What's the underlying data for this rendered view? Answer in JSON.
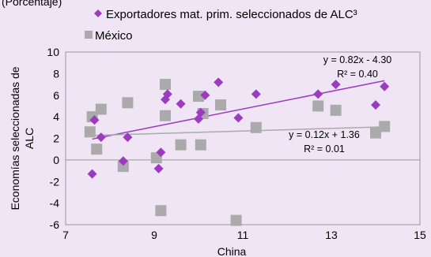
{
  "header": {
    "subtitle": "(Porcentaje)"
  },
  "chart_data": {
    "type": "scatter",
    "xlabel": "China",
    "ylabel": "Economías seleccionadas de ALC",
    "xlim": [
      7,
      15
    ],
    "ylim": [
      -6,
      10
    ],
    "x_ticks": [
      7,
      9,
      11,
      13,
      15
    ],
    "y_ticks": [
      -6,
      -4,
      -2,
      0,
      2,
      4,
      6,
      8,
      10
    ],
    "grid": false,
    "legend_position": "top-left",
    "series": [
      {
        "name": "Exportadores mat. prim. seleccionados de ALC³",
        "marker": "diamond",
        "color": "#9b3cc0",
        "points": [
          [
            7.6,
            -1.3
          ],
          [
            7.65,
            3.7
          ],
          [
            7.8,
            2.1
          ],
          [
            8.3,
            -0.1
          ],
          [
            8.4,
            2.1
          ],
          [
            9.1,
            -0.8
          ],
          [
            9.15,
            0.7
          ],
          [
            9.25,
            5.6
          ],
          [
            9.3,
            6.1
          ],
          [
            9.6,
            5.2
          ],
          [
            10.0,
            3.8
          ],
          [
            10.05,
            4.4
          ],
          [
            10.15,
            6.0
          ],
          [
            10.45,
            7.2
          ],
          [
            10.9,
            3.9
          ],
          [
            11.3,
            6.1
          ],
          [
            12.7,
            6.1
          ],
          [
            13.1,
            7.0
          ],
          [
            14.0,
            5.1
          ],
          [
            14.2,
            6.8
          ]
        ],
        "trendline": {
          "slope": 0.82,
          "intercept": -4.3,
          "x_range": [
            7.6,
            14.2
          ],
          "equation": "y = 0.82x - 4.30",
          "r2": "R² = 0.40",
          "color": "#9b3cc0"
        }
      },
      {
        "name": "México",
        "marker": "square",
        "color": "#aaaaaa",
        "points": [
          [
            7.55,
            2.6
          ],
          [
            7.6,
            4.0
          ],
          [
            7.7,
            1.0
          ],
          [
            7.8,
            4.7
          ],
          [
            8.3,
            -0.6
          ],
          [
            8.4,
            5.3
          ],
          [
            9.05,
            0.2
          ],
          [
            9.15,
            -4.7
          ],
          [
            9.25,
            7.0
          ],
          [
            9.25,
            4.1
          ],
          [
            9.6,
            1.4
          ],
          [
            10.0,
            5.9
          ],
          [
            10.05,
            1.4
          ],
          [
            10.1,
            4.3
          ],
          [
            10.5,
            5.1
          ],
          [
            10.85,
            -5.6
          ],
          [
            11.3,
            3.0
          ],
          [
            12.7,
            5.0
          ],
          [
            13.1,
            4.6
          ],
          [
            14.0,
            2.5
          ],
          [
            14.2,
            3.1
          ]
        ],
        "trendline": {
          "slope": 0.12,
          "intercept": 1.36,
          "x_range": [
            7.6,
            14.2
          ],
          "equation": "y = 0.12x + 1.36",
          "r2": "R² = 0.01",
          "color": "#aaaaaa"
        }
      }
    ]
  }
}
